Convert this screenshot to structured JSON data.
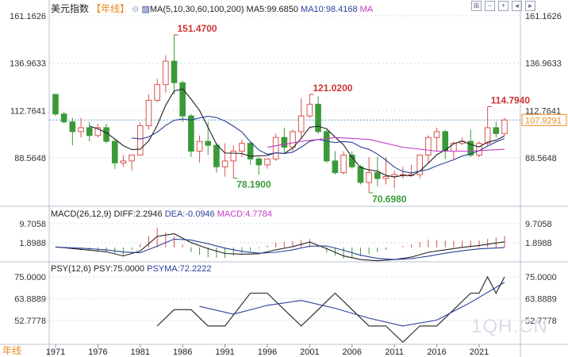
{
  "header": {
    "title": "美元指数",
    "period": "【年线】",
    "ma_label": "MA(5,10,30,60,100,200)",
    "ma5": "MA5:99.6850",
    "ma10": "MA10:98.4168",
    "ma_more": "MA"
  },
  "macd_header": {
    "label": "MACD(26,12,9)",
    "diff": "DIFF:2.2946",
    "dea": "DEA:-0.0946",
    "macd": "MACD:4.7784"
  },
  "psy_header": {
    "label": "PSY(12,6)",
    "psy": "PSY:75.0000",
    "psyma": "PSYMA:72.2222"
  },
  "bottom_period": "年线",
  "watermark": "1QH.CN",
  "colors": {
    "up": "#d9534f",
    "down": "#3a9a3a",
    "ma5": "#222222",
    "ma10": "#2a3f9a",
    "ma30": "#c03bc0",
    "diff": "#222222",
    "dea": "#2a3f9a",
    "current": "#e8891a",
    "grid": "#d6dce8"
  },
  "chart_data": {
    "type": "candlestick",
    "x_ticks": [
      "1971",
      "1976",
      "1981",
      "1986",
      "1991",
      "1996",
      "2001",
      "2006",
      "2011",
      "2016",
      "2021"
    ],
    "price_axis": {
      "ticks": [
        "161.1626",
        "136.9633",
        "112.7641",
        "88.5648"
      ],
      "tick_values": [
        161.1626,
        136.9633,
        112.7641,
        88.5648
      ],
      "ylim": [
        70.6,
        161.2
      ],
      "current": "107.9291",
      "current_value": 107.9291
    },
    "annotations": [
      {
        "text": "151.4700",
        "value": 151.47,
        "year": 1985,
        "type": "high"
      },
      {
        "text": "121.0200",
        "value": 121.02,
        "year": 2001,
        "type": "high"
      },
      {
        "text": "78.1900",
        "value": 78.19,
        "year": 1992,
        "type": "low"
      },
      {
        "text": "70.6980",
        "value": 70.698,
        "year": 2008,
        "type": "low"
      },
      {
        "text": "114.7940",
        "value": 114.794,
        "year": 2022,
        "type": "high"
      }
    ],
    "candles": [
      {
        "year": 1971,
        "o": 121,
        "h": 121,
        "l": 110,
        "c": 111
      },
      {
        "year": 1972,
        "o": 111,
        "h": 112,
        "l": 106,
        "c": 107
      },
      {
        "year": 1973,
        "o": 107,
        "h": 109,
        "l": 95,
        "c": 102
      },
      {
        "year": 1974,
        "o": 102,
        "h": 109,
        "l": 99,
        "c": 104
      },
      {
        "year": 1975,
        "o": 104,
        "h": 107,
        "l": 97,
        "c": 100
      },
      {
        "year": 1976,
        "o": 100,
        "h": 106,
        "l": 99,
        "c": 104
      },
      {
        "year": 1977,
        "o": 104,
        "h": 106,
        "l": 96,
        "c": 97
      },
      {
        "year": 1978,
        "o": 97,
        "h": 98,
        "l": 83,
        "c": 86
      },
      {
        "year": 1979,
        "o": 86,
        "h": 90,
        "l": 84,
        "c": 87
      },
      {
        "year": 1980,
        "o": 87,
        "h": 90,
        "l": 82,
        "c": 90
      },
      {
        "year": 1981,
        "o": 90,
        "h": 107,
        "l": 90,
        "c": 105
      },
      {
        "year": 1982,
        "o": 105,
        "h": 121,
        "l": 103,
        "c": 118
      },
      {
        "year": 1983,
        "o": 118,
        "h": 129,
        "l": 117,
        "c": 126
      },
      {
        "year": 1984,
        "o": 126,
        "h": 141,
        "l": 122,
        "c": 138
      },
      {
        "year": 1985,
        "o": 138,
        "h": 151.47,
        "l": 121,
        "c": 127
      },
      {
        "year": 1986,
        "o": 127,
        "h": 128,
        "l": 107,
        "c": 110
      },
      {
        "year": 1987,
        "o": 110,
        "h": 111,
        "l": 89,
        "c": 92
      },
      {
        "year": 1988,
        "o": 92,
        "h": 100,
        "l": 86,
        "c": 97
      },
      {
        "year": 1989,
        "o": 97,
        "h": 107,
        "l": 90,
        "c": 95
      },
      {
        "year": 1990,
        "o": 95,
        "h": 96,
        "l": 81,
        "c": 84
      },
      {
        "year": 1991,
        "o": 84,
        "h": 96,
        "l": 79,
        "c": 87
      },
      {
        "year": 1992,
        "o": 87,
        "h": 95,
        "l": 78.19,
        "c": 92
      },
      {
        "year": 1993,
        "o": 92,
        "h": 98,
        "l": 89,
        "c": 96
      },
      {
        "year": 1994,
        "o": 96,
        "h": 97,
        "l": 85,
        "c": 88
      },
      {
        "year": 1995,
        "o": 88,
        "h": 89,
        "l": 80,
        "c": 85
      },
      {
        "year": 1996,
        "o": 85,
        "h": 88,
        "l": 83,
        "c": 88
      },
      {
        "year": 1997,
        "o": 88,
        "h": 101,
        "l": 87,
        "c": 99
      },
      {
        "year": 1998,
        "o": 99,
        "h": 104,
        "l": 91,
        "c": 94
      },
      {
        "year": 1999,
        "o": 94,
        "h": 103,
        "l": 92,
        "c": 102
      },
      {
        "year": 2000,
        "o": 102,
        "h": 119,
        "l": 98,
        "c": 110
      },
      {
        "year": 2001,
        "o": 110,
        "h": 121.02,
        "l": 109,
        "c": 116
      },
      {
        "year": 2002,
        "o": 116,
        "h": 120,
        "l": 101,
        "c": 102
      },
      {
        "year": 2003,
        "o": 102,
        "h": 103,
        "l": 86,
        "c": 87
      },
      {
        "year": 2004,
        "o": 87,
        "h": 92,
        "l": 80,
        "c": 81
      },
      {
        "year": 2005,
        "o": 81,
        "h": 92,
        "l": 80,
        "c": 90
      },
      {
        "year": 2006,
        "o": 90,
        "h": 92,
        "l": 83,
        "c": 84
      },
      {
        "year": 2007,
        "o": 84,
        "h": 85,
        "l": 75,
        "c": 76
      },
      {
        "year": 2008,
        "o": 76,
        "h": 89,
        "l": 70.698,
        "c": 81
      },
      {
        "year": 2009,
        "o": 81,
        "h": 89,
        "l": 74,
        "c": 78
      },
      {
        "year": 2010,
        "o": 78,
        "h": 89,
        "l": 75,
        "c": 79
      },
      {
        "year": 2011,
        "o": 79,
        "h": 82,
        "l": 73,
        "c": 80
      },
      {
        "year": 2012,
        "o": 80,
        "h": 84,
        "l": 78,
        "c": 80
      },
      {
        "year": 2013,
        "o": 80,
        "h": 85,
        "l": 79,
        "c": 80
      },
      {
        "year": 2014,
        "o": 80,
        "h": 90,
        "l": 78,
        "c": 90
      },
      {
        "year": 2015,
        "o": 90,
        "h": 100,
        "l": 86,
        "c": 99
      },
      {
        "year": 2016,
        "o": 99,
        "h": 104,
        "l": 92,
        "c": 102
      },
      {
        "year": 2017,
        "o": 102,
        "h": 103,
        "l": 88,
        "c": 92
      },
      {
        "year": 2018,
        "o": 92,
        "h": 97,
        "l": 88,
        "c": 96
      },
      {
        "year": 2019,
        "o": 96,
        "h": 99,
        "l": 95,
        "c": 97
      },
      {
        "year": 2020,
        "o": 97,
        "h": 103,
        "l": 89,
        "c": 90
      },
      {
        "year": 2021,
        "o": 90,
        "h": 97,
        "l": 89,
        "c": 96
      },
      {
        "year": 2022,
        "o": 96,
        "h": 114.794,
        "l": 95,
        "c": 104
      },
      {
        "year": 2023,
        "o": 104,
        "h": 107,
        "l": 99,
        "c": 101
      },
      {
        "year": 2024,
        "o": 101,
        "h": 109,
        "l": 100,
        "c": 107.9291
      }
    ],
    "ma30_values": [
      {
        "year": 1996,
        "v": 94
      },
      {
        "year": 2000,
        "v": 97
      },
      {
        "year": 2004,
        "v": 99
      },
      {
        "year": 2008,
        "v": 98
      },
      {
        "year": 2012,
        "v": 94
      },
      {
        "year": 2016,
        "v": 92
      },
      {
        "year": 2020,
        "v": 92
      },
      {
        "year": 2024,
        "v": 93
      }
    ],
    "macd_axis": {
      "ticks": [
        "9.7058",
        "1.8988"
      ],
      "tick_values": [
        9.7058,
        1.8988
      ],
      "ylim": [
        -8.0,
        15.0
      ]
    },
    "macd_series": [
      {
        "year": 1971,
        "diff": 0.2,
        "dea": 0.1
      },
      {
        "year": 1974,
        "diff": -0.8,
        "dea": -0.3
      },
      {
        "year": 1977,
        "diff": -1.8,
        "dea": -1.0
      },
      {
        "year": 1979,
        "diff": -3.5,
        "dea": -1.9
      },
      {
        "year": 1981,
        "diff": -1.5,
        "dea": -2.2
      },
      {
        "year": 1983,
        "diff": 4.5,
        "dea": 0.5
      },
      {
        "year": 1985,
        "diff": 5.6,
        "dea": 3.4
      },
      {
        "year": 1987,
        "diff": 2.0,
        "dea": 3.0
      },
      {
        "year": 1989,
        "diff": -0.5,
        "dea": 1.5
      },
      {
        "year": 1991,
        "diff": -2.5,
        "dea": -0.3
      },
      {
        "year": 1993,
        "diff": -2.8,
        "dea": -1.6
      },
      {
        "year": 1995,
        "diff": -2.6,
        "dea": -2.4
      },
      {
        "year": 1997,
        "diff": -1.0,
        "dea": -2.0
      },
      {
        "year": 1999,
        "diff": 0.3,
        "dea": -1.0
      },
      {
        "year": 2001,
        "diff": 2.2,
        "dea": 0.5
      },
      {
        "year": 2003,
        "diff": -0.5,
        "dea": 0.6
      },
      {
        "year": 2005,
        "diff": -3.5,
        "dea": -1.2
      },
      {
        "year": 2007,
        "diff": -5.0,
        "dea": -3.2
      },
      {
        "year": 2009,
        "diff": -5.5,
        "dea": -4.5
      },
      {
        "year": 2011,
        "diff": -5.0,
        "dea": -5.0
      },
      {
        "year": 2013,
        "diff": -4.0,
        "dea": -4.6
      },
      {
        "year": 2015,
        "diff": -2.0,
        "dea": -3.6
      },
      {
        "year": 2017,
        "diff": -1.0,
        "dea": -2.4
      },
      {
        "year": 2019,
        "diff": 0.0,
        "dea": -1.4
      },
      {
        "year": 2021,
        "diff": 0.8,
        "dea": -0.6
      },
      {
        "year": 2024,
        "diff": 2.2946,
        "dea": -0.0946
      }
    ],
    "psy_axis": {
      "ticks": [
        "75.0000",
        "63.8889",
        "52.7778"
      ],
      "tick_values": [
        75.0,
        63.8889,
        52.7778
      ],
      "ylim": [
        44.0,
        77.0
      ]
    },
    "psy_series": [
      {
        "year": 1983,
        "psy": 50.0
      },
      {
        "year": 1985,
        "psy": 58.3
      },
      {
        "year": 1987,
        "psy": 58.3
      },
      {
        "year": 1989,
        "psy": 50.0
      },
      {
        "year": 1991,
        "psy": 50.0
      },
      {
        "year": 1994,
        "psy": 66.7
      },
      {
        "year": 1996,
        "psy": 66.7
      },
      {
        "year": 1998,
        "psy": 58.3
      },
      {
        "year": 2000,
        "psy": 50.0
      },
      {
        "year": 2002,
        "psy": 58.3
      },
      {
        "year": 2004,
        "psy": 66.7
      },
      {
        "year": 2006,
        "psy": 58.3
      },
      {
        "year": 2008,
        "psy": 50.0
      },
      {
        "year": 2010,
        "psy": 50.0
      },
      {
        "year": 2012,
        "psy": 41.7
      },
      {
        "year": 2014,
        "psy": 50.0
      },
      {
        "year": 2016,
        "psy": 50.0
      },
      {
        "year": 2018,
        "psy": 58.3
      },
      {
        "year": 2020,
        "psy": 66.7
      },
      {
        "year": 2021,
        "psy": 66.7
      },
      {
        "year": 2022,
        "psy": 75.0
      },
      {
        "year": 2023,
        "psy": 66.7
      },
      {
        "year": 2024,
        "psy": 75.0
      }
    ],
    "psyma_series": [
      {
        "year": 1988,
        "v": 60.0
      },
      {
        "year": 1992,
        "v": 56.0
      },
      {
        "year": 1996,
        "v": 60.5
      },
      {
        "year": 2000,
        "v": 63.0
      },
      {
        "year": 2004,
        "v": 59.0
      },
      {
        "year": 2008,
        "v": 54.0
      },
      {
        "year": 2012,
        "v": 50.0
      },
      {
        "year": 2016,
        "v": 53.0
      },
      {
        "year": 2020,
        "v": 62.0
      },
      {
        "year": 2024,
        "v": 72.2222
      }
    ]
  }
}
